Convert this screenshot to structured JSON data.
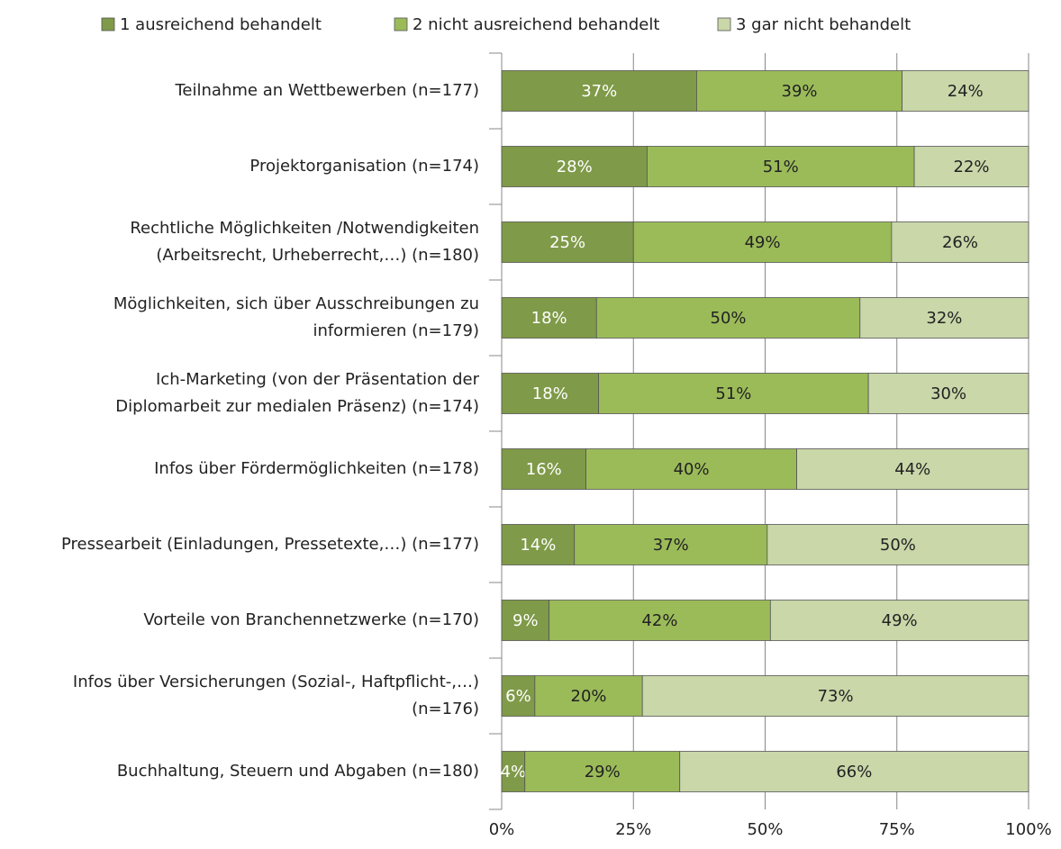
{
  "chart_data": {
    "type": "stacked_bar_horizontal",
    "categories": [
      [
        "Teilnahme an Wettbewerben (n=177)"
      ],
      [
        "Projektorganisation (n=174)"
      ],
      [
        "Rechtliche Möglichkeiten /Notwendigkeiten",
        "(Arbeitsrecht, Urheberrecht,…) (n=180)"
      ],
      [
        "Möglichkeiten, sich über Ausschreibungen zu",
        "informieren (n=179)"
      ],
      [
        "Ich-Marketing (von der Präsentation der",
        "Diplomarbeit zur medialen Präsenz) (n=174)"
      ],
      [
        "Infos über Fördermöglichkeiten (n=178)"
      ],
      [
        "Pressearbeit (Einladungen, Pressetexte,…) (n=177)"
      ],
      [
        "Vorteile von Branchennetzwerke (n=170)"
      ],
      [
        "Infos über Versicherungen (Sozial-, Haftpflicht-,…)",
        "(n=176)"
      ],
      [
        "Buchhaltung, Steuern und Abgaben (n=180)"
      ]
    ],
    "series": [
      {
        "name": "1 ausreichend behandelt",
        "color": "#7f9a48",
        "values": [
          37,
          27.6,
          25,
          18,
          18.4,
          16,
          13.8,
          9,
          6.3,
          4.4
        ],
        "value_labels": [
          "37%",
          "28%",
          "25%",
          "18%",
          "18%",
          "16%",
          "14%",
          "9%",
          "6%",
          "4%"
        ]
      },
      {
        "name": "2 nicht ausreichend behandelt",
        "color": "#9bbb59",
        "values": [
          39,
          50.7,
          49,
          50,
          51.2,
          40,
          36.6,
          42,
          20.4,
          29.4
        ],
        "value_labels": [
          "39%",
          "51%",
          "49%",
          "50%",
          "51%",
          "40%",
          "37%",
          "42%",
          "20%",
          "29%"
        ]
      },
      {
        "name": "3 gar nicht behandelt",
        "color": "#c9d7a9",
        "values": [
          24,
          21.7,
          26,
          32,
          30.4,
          44,
          49.6,
          49,
          73.3,
          66.2
        ],
        "value_labels": [
          "24%",
          "22%",
          "26%",
          "32%",
          "30%",
          "44%",
          "50%",
          "49%",
          "73%",
          "66%"
        ]
      }
    ],
    "xlim": [
      0,
      100
    ],
    "xticks": [
      {
        "value": 0,
        "label": "0%"
      },
      {
        "value": 25,
        "label": "25%"
      },
      {
        "value": 50,
        "label": "50%"
      },
      {
        "value": 75,
        "label": "75%"
      },
      {
        "value": 100,
        "label": "100%"
      }
    ],
    "grid": true,
    "legend": "top"
  }
}
